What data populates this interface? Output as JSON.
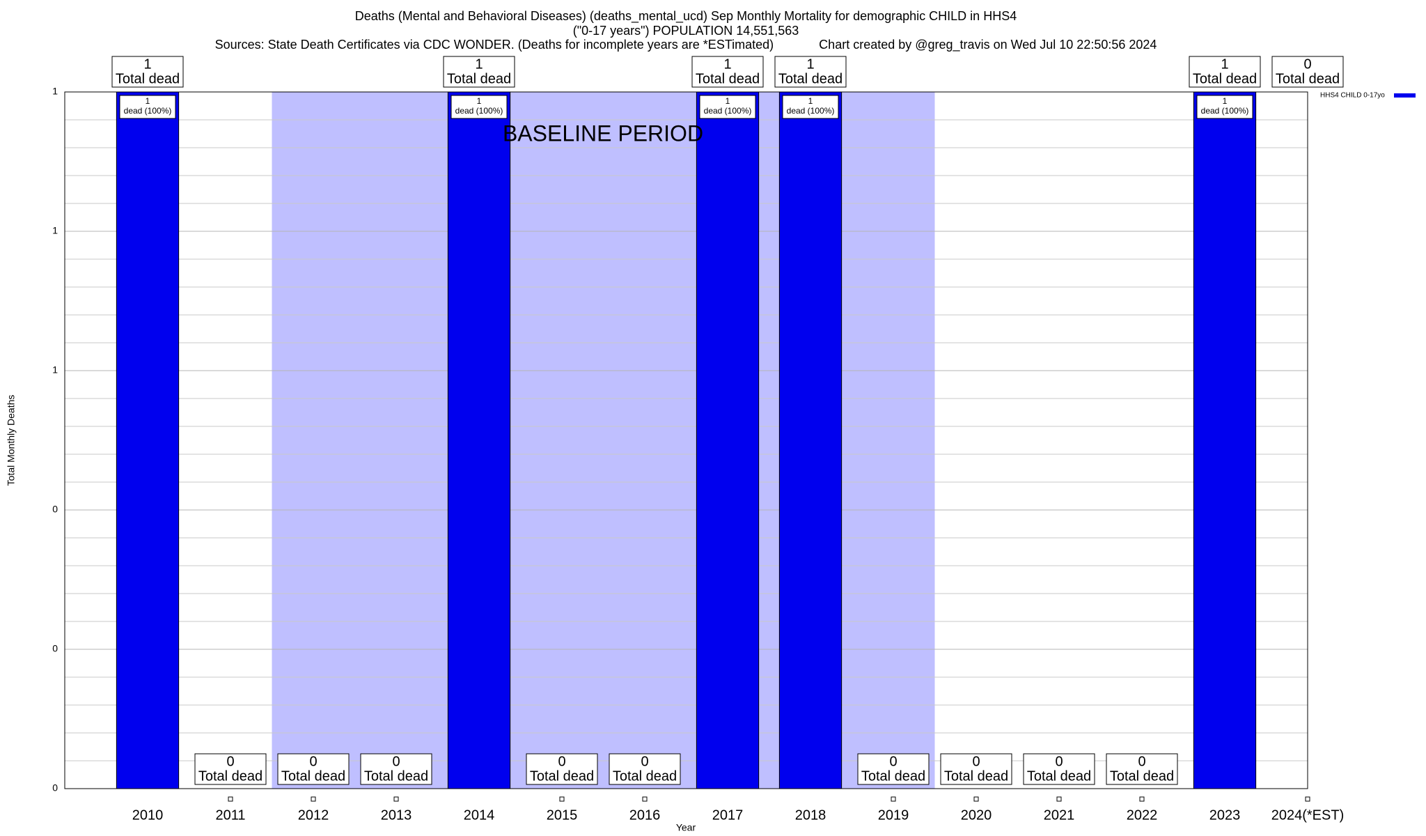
{
  "chart_data": {
    "type": "bar",
    "title_lines": [
      "Deaths (Mental and Behavioral Diseases) (deaths_mental_ucd) Sep Monthly Mortality for demographic CHILD in HHS4",
      "(\"0-17 years\") POPULATION 14,551,563",
      "Sources: State Death Certificates via CDC WONDER. (Deaths for incomplete years are *ESTimated)             Chart created by @greg_travis on Wed Jul 10 22:50:56 2024"
    ],
    "x_label": "Year",
    "y_label": "Total Monthly Deaths",
    "categories": [
      "2010",
      "2011",
      "2012",
      "2013",
      "2014",
      "2015",
      "2016",
      "2017",
      "2018",
      "2019",
      "2020",
      "2021",
      "2022",
      "2023",
      "2024(*EST)"
    ],
    "series": [
      {
        "name": "HHS4 CHILD 0-17yo",
        "color": "#0000ee",
        "values": [
          1,
          0,
          0,
          0,
          1,
          0,
          0,
          1,
          1,
          0,
          0,
          0,
          0,
          1,
          0
        ]
      }
    ],
    "total_label": "Total dead",
    "bar_label": "dead (100%)",
    "baseline_period": {
      "label": "BASELINE PERIOD",
      "from": "2012",
      "to": "2019",
      "color": "#bfbfff"
    },
    "ylim": [
      0,
      1
    ],
    "yticks": [
      0,
      {
        "value": 0.2,
        "label": "0"
      },
      {
        "value": 0.4,
        "label": "0"
      },
      {
        "value": 0.6,
        "label": "1"
      },
      {
        "value": 0.8,
        "label": "1"
      },
      1
    ],
    "minor_yticks": [
      0.04,
      0.08,
      0.12,
      0.16,
      0.24,
      0.28,
      0.32,
      0.36,
      0.44,
      0.48,
      0.52,
      0.56,
      0.64,
      0.68,
      0.72,
      0.76,
      0.84,
      0.88,
      0.92,
      0.96
    ],
    "grid": true,
    "legend": "top-right"
  }
}
